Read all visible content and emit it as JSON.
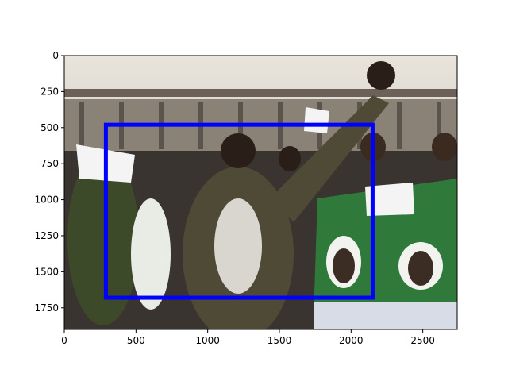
{
  "chart_data": {
    "type": "image",
    "xlim": [
      0,
      2740
    ],
    "ylim": [
      1900,
      0
    ],
    "xticks": [
      0,
      500,
      1000,
      1500,
      2000,
      2500
    ],
    "yticks": [
      0,
      250,
      500,
      750,
      1000,
      1250,
      1500,
      1750
    ],
    "boxes": [
      {
        "x0": 290,
        "y0": 480,
        "x1": 2150,
        "y1": 1680,
        "color": "#0000ff"
      }
    ]
  }
}
